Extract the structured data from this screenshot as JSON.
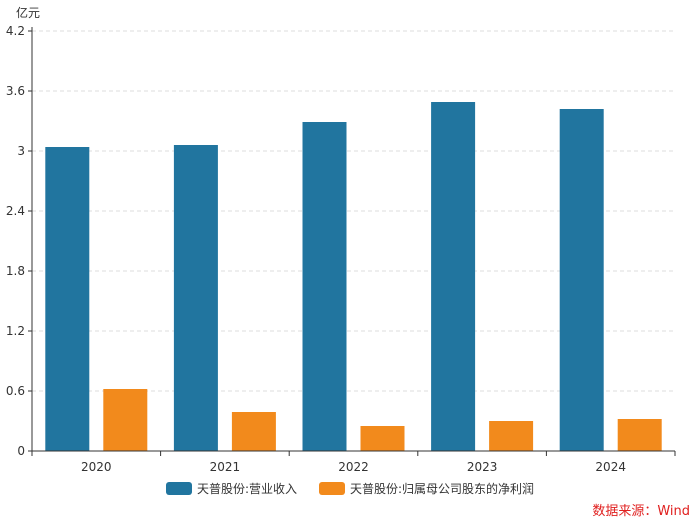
{
  "chart_data": {
    "type": "bar",
    "unit_label": "亿元",
    "categories": [
      "2020",
      "2021",
      "2022",
      "2023",
      "2024"
    ],
    "series": [
      {
        "name": "天普股份:营业收入",
        "color": "#21759f",
        "values": [
          3.04,
          3.06,
          3.29,
          3.49,
          3.42
        ]
      },
      {
        "name": "天普股份:归属母公司股东的净利润",
        "color": "#f28a1c",
        "values": [
          0.62,
          0.39,
          0.25,
          0.3,
          0.32
        ]
      }
    ],
    "ylim": [
      0,
      4.2
    ],
    "yticks": [
      "0",
      "0.6",
      "1.2",
      "1.8",
      "2.4",
      "3",
      "3.6",
      "4.2"
    ],
    "grid": true,
    "legend_position": "bottom-center"
  },
  "source": "数据来源：Wind"
}
